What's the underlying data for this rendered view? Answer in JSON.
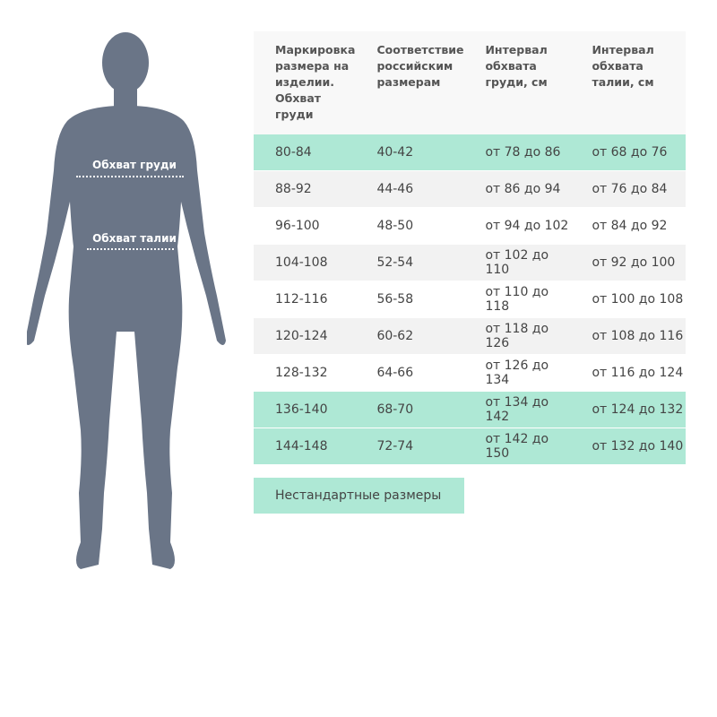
{
  "figure": {
    "chest_label": "Обхват груди",
    "waist_label": "Обхват талии",
    "color": "#6a7587"
  },
  "table": {
    "headers": [
      "Маркировка размера на изделии. Обхват груди",
      "Соответствие российским размерам",
      "Интервал обхвата груди, см",
      "Интервал обхвата талии, см"
    ],
    "rows": [
      {
        "highlight": true,
        "cells": [
          "80-84",
          "40-42",
          "от 78 до 86",
          "от 68 до 76"
        ]
      },
      {
        "highlight": false,
        "cells": [
          "88-92",
          "44-46",
          "от 86 до 94",
          "от 76 до 84"
        ]
      },
      {
        "highlight": false,
        "cells": [
          "96-100",
          "48-50",
          "от 94 до 102",
          "от 84 до 92"
        ]
      },
      {
        "highlight": false,
        "cells": [
          "104-108",
          "52-54",
          "от 102 до 110",
          "от 92 до 100"
        ]
      },
      {
        "highlight": false,
        "cells": [
          "112-116",
          "56-58",
          "от 110 до 118",
          "от 100 до 108"
        ]
      },
      {
        "highlight": false,
        "cells": [
          "120-124",
          "60-62",
          "от 118 до 126",
          "от 108 до 116"
        ]
      },
      {
        "highlight": false,
        "cells": [
          "128-132",
          "64-66",
          "от 126 до 134",
          "от 116 до 124"
        ]
      },
      {
        "highlight": true,
        "cells": [
          "136-140",
          "68-70",
          "от 134 до 142",
          "от 124 до 132"
        ]
      },
      {
        "highlight": true,
        "cells": [
          "144-148",
          "72-74",
          "от 142 до 150",
          "от 132 до 140"
        ]
      }
    ],
    "highlight_color": "#aee8d5"
  },
  "button": {
    "label": "Нестандартные размеры"
  }
}
